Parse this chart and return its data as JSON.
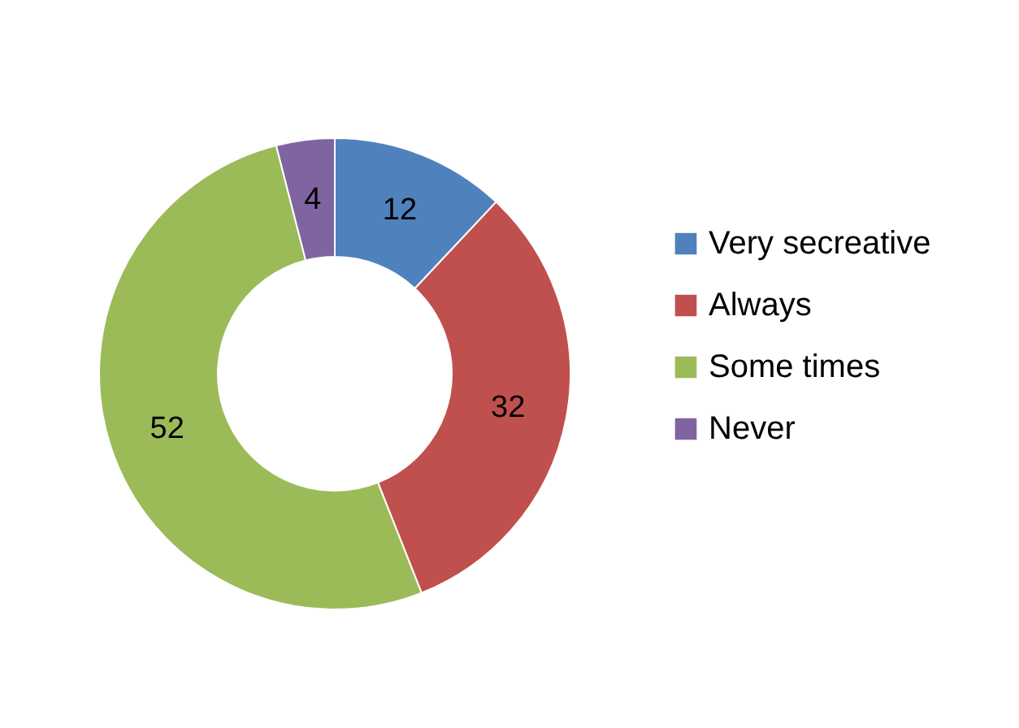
{
  "chart_data": {
    "type": "donut",
    "categories": [
      "Very secreative",
      "Always",
      "Some times",
      "Never"
    ],
    "values": [
      12,
      32,
      52,
      4
    ],
    "colors": [
      "#4f81bd",
      "#c0504d",
      "#9bbb59",
      "#8064a2"
    ],
    "data_labels": true,
    "legend": "right"
  }
}
